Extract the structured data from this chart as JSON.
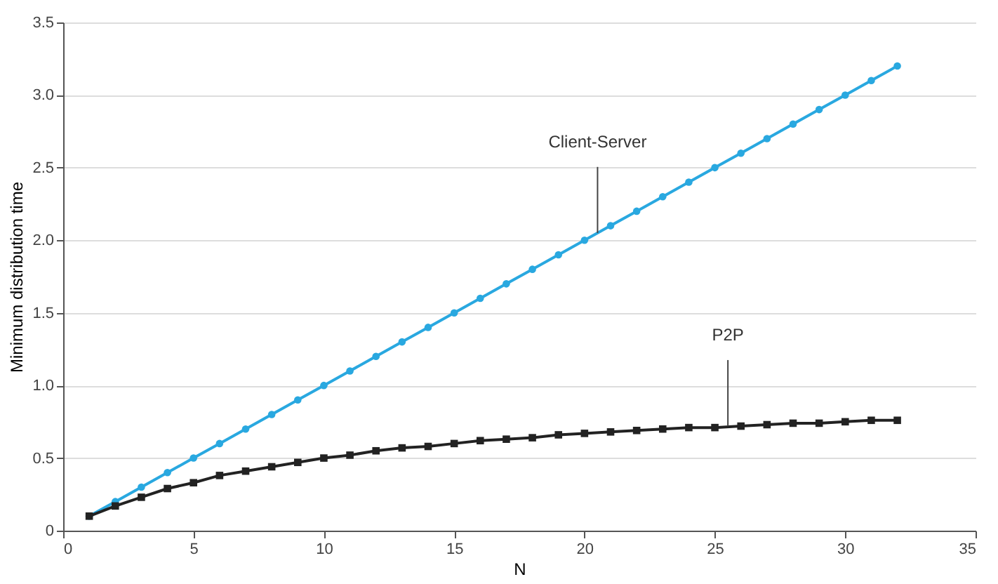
{
  "chart_data": {
    "type": "line",
    "xlabel": "N",
    "ylabel": "Minimum distribution time",
    "x": [
      1,
      2,
      3,
      4,
      5,
      6,
      7,
      8,
      9,
      10,
      11,
      12,
      13,
      14,
      15,
      16,
      17,
      18,
      19,
      20,
      21,
      22,
      23,
      24,
      25,
      26,
      27,
      28,
      29,
      30,
      31,
      32
    ],
    "series": [
      {
        "color": "#29a8e0",
        "marker": "circle",
        "values": [
          0.1,
          0.2,
          0.3,
          0.4,
          0.5,
          0.6,
          0.7,
          0.8,
          0.9,
          1.0,
          1.1,
          1.2,
          1.3,
          1.4,
          1.5,
          1.6,
          1.7,
          1.8,
          1.9,
          2.0,
          2.1,
          2.2,
          2.3,
          2.4,
          2.5,
          2.6,
          2.7,
          2.8,
          2.9,
          3.0,
          3.1,
          3.2
        ]
      },
      {
        "color": "#222222",
        "marker": "square",
        "values": [
          0.1,
          0.17,
          0.23,
          0.29,
          0.33,
          0.38,
          0.41,
          0.44,
          0.47,
          0.5,
          0.52,
          0.55,
          0.57,
          0.58,
          0.6,
          0.62,
          0.63,
          0.64,
          0.66,
          0.67,
          0.68,
          0.69,
          0.7,
          0.71,
          0.71,
          0.72,
          0.73,
          0.74,
          0.74,
          0.75,
          0.76,
          0.76
        ]
      }
    ],
    "annotations": [
      {
        "text": "Client-Server",
        "x": 20.5,
        "y": 2.05
      },
      {
        "text": "P2P",
        "x": 25.5,
        "y": 0.72
      }
    ],
    "xlim": [
      0,
      35
    ],
    "xticks": [
      0,
      5,
      10,
      15,
      20,
      25,
      30,
      35
    ],
    "ylim": [
      0,
      3.5
    ],
    "yticks": [
      0,
      {
        "value": 0.5,
        "label": "0.5"
      },
      {
        "value": 1,
        "label": "1.0"
      },
      {
        "value": 1.5,
        "label": "1.5"
      },
      {
        "value": 2,
        "label": "2.0"
      },
      {
        "value": 2.5,
        "label": "2.5"
      },
      {
        "value": 3,
        "label": "3.0"
      },
      {
        "value": 3.5,
        "label": "3.5"
      }
    ],
    "grid": "y",
    "line_style": "solid"
  }
}
